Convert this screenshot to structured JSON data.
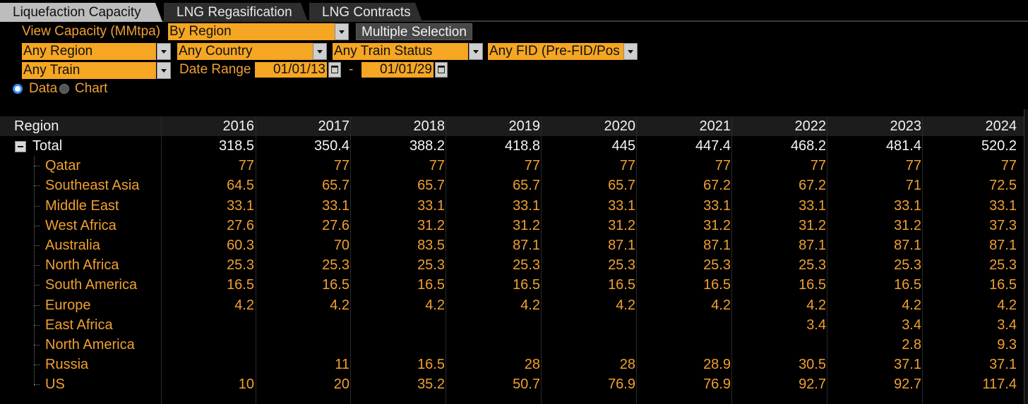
{
  "tabs": [
    {
      "label": "Liquefaction Capacity",
      "active": true
    },
    {
      "label": "LNG Regasification",
      "active": false
    },
    {
      "label": "LNG Contracts",
      "active": false
    }
  ],
  "controls": {
    "view_label": "View Capacity (MMtpa)",
    "view_value": "By Region",
    "multiple_selection": "Multiple Selection",
    "region": "Any Region",
    "country": "Any Country",
    "train_status": "Any Train Status",
    "fid": "Any FID (Pre-FID/Pos",
    "train": "Any Train",
    "date_range_label": "Date Range",
    "date_from": "01/01/13",
    "date_sep": "-",
    "date_to": "01/01/29",
    "radio_data": "Data",
    "radio_chart": "Chart",
    "selected_mode": "Data"
  },
  "table": {
    "header_label": "Region",
    "years": [
      "2016",
      "2017",
      "2018",
      "2019",
      "2020",
      "2021",
      "2022",
      "2023",
      "2024"
    ],
    "total": {
      "label": "Total",
      "values": [
        "318.5",
        "350.4",
        "388.2",
        "418.8",
        "445",
        "447.4",
        "468.2",
        "481.4",
        "520.2"
      ]
    },
    "rows": [
      {
        "label": "Qatar",
        "values": [
          "77",
          "77",
          "77",
          "77",
          "77",
          "77",
          "77",
          "77",
          "77"
        ]
      },
      {
        "label": "Southeast Asia",
        "values": [
          "64.5",
          "65.7",
          "65.7",
          "65.7",
          "65.7",
          "67.2",
          "67.2",
          "71",
          "72.5"
        ]
      },
      {
        "label": "Middle East",
        "values": [
          "33.1",
          "33.1",
          "33.1",
          "33.1",
          "33.1",
          "33.1",
          "33.1",
          "33.1",
          "33.1"
        ]
      },
      {
        "label": "West Africa",
        "values": [
          "27.6",
          "27.6",
          "31.2",
          "31.2",
          "31.2",
          "31.2",
          "31.2",
          "31.2",
          "37.3"
        ]
      },
      {
        "label": "Australia",
        "values": [
          "60.3",
          "70",
          "83.5",
          "87.1",
          "87.1",
          "87.1",
          "87.1",
          "87.1",
          "87.1"
        ]
      },
      {
        "label": "North Africa",
        "values": [
          "25.3",
          "25.3",
          "25.3",
          "25.3",
          "25.3",
          "25.3",
          "25.3",
          "25.3",
          "25.3"
        ]
      },
      {
        "label": "South America",
        "values": [
          "16.5",
          "16.5",
          "16.5",
          "16.5",
          "16.5",
          "16.5",
          "16.5",
          "16.5",
          "16.5"
        ]
      },
      {
        "label": "Europe",
        "values": [
          "4.2",
          "4.2",
          "4.2",
          "4.2",
          "4.2",
          "4.2",
          "4.2",
          "4.2",
          "4.2"
        ]
      },
      {
        "label": "East Africa",
        "values": [
          "",
          "",
          "",
          "",
          "",
          "",
          "3.4",
          "3.4",
          "3.4"
        ]
      },
      {
        "label": "North America",
        "values": [
          "",
          "",
          "",
          "",
          "",
          "",
          "",
          "2.8",
          "9.3"
        ]
      },
      {
        "label": "Russia",
        "values": [
          "",
          "11",
          "16.5",
          "28",
          "28",
          "28.9",
          "30.5",
          "37.1",
          "37.1"
        ]
      },
      {
        "label": "US",
        "values": [
          "10",
          "20",
          "35.2",
          "50.7",
          "76.9",
          "76.9",
          "92.7",
          "92.7",
          "117.4"
        ]
      }
    ]
  }
}
